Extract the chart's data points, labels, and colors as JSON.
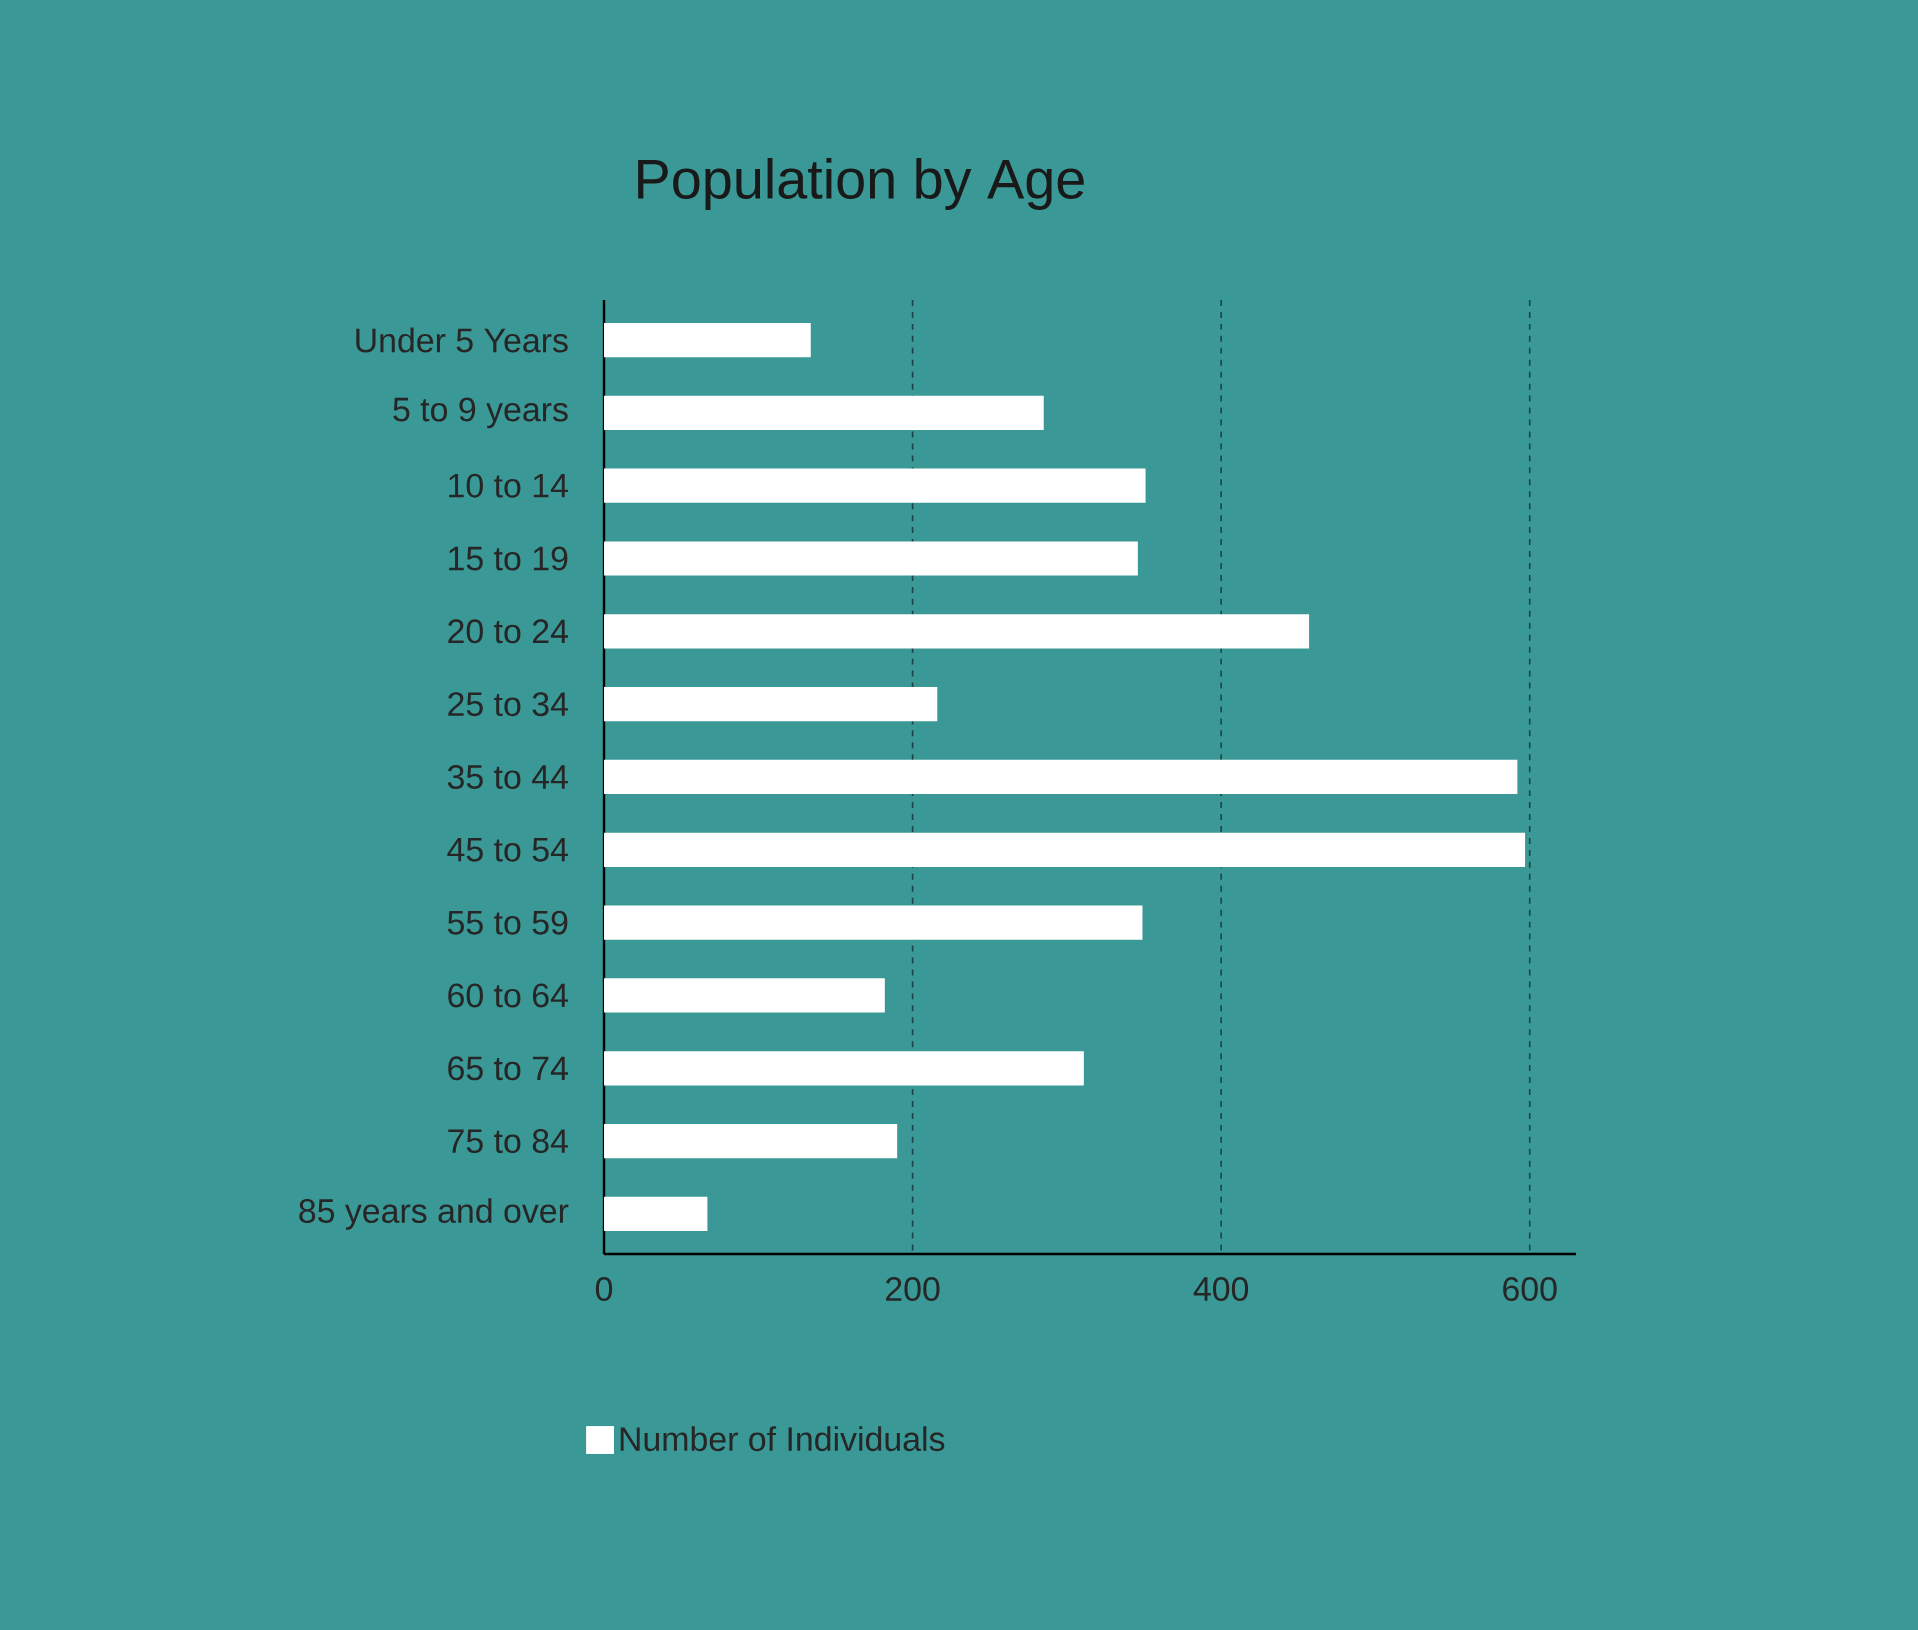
{
  "chart_data": {
    "type": "bar",
    "orientation": "horizontal",
    "title": "Population by Age",
    "categories": [
      "Under 5 Years",
      "5 to 9 years",
      "10 to 14",
      "15 to 19",
      "20 to 24",
      "25 to 34",
      "35 to 44",
      "45 to 54",
      "55 to 59",
      "60 to 64",
      "65 to 74",
      "75 to 84",
      "85 years and over"
    ],
    "series": [
      {
        "name": "Number of Individuals",
        "color": "#ffffff",
        "values": [
          134,
          285,
          351,
          346,
          457,
          216,
          592,
          597,
          349,
          182,
          311,
          190,
          67
        ]
      }
    ],
    "xlim": [
      0,
      630
    ],
    "xticks": [
      0,
      200,
      400,
      600
    ],
    "grid": "x",
    "legend": "bottom"
  }
}
